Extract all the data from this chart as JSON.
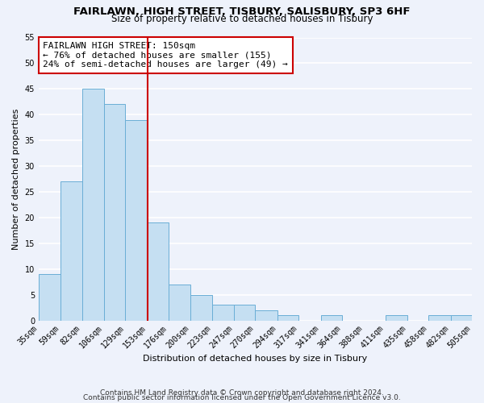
{
  "title": "FAIRLAWN, HIGH STREET, TISBURY, SALISBURY, SP3 6HF",
  "subtitle": "Size of property relative to detached houses in Tisbury",
  "xlabel": "Distribution of detached houses by size in Tisbury",
  "ylabel": "Number of detached properties",
  "bar_edges": [
    35,
    59,
    82,
    106,
    129,
    153,
    176,
    200,
    223,
    247,
    270,
    294,
    317,
    341,
    364,
    388,
    411,
    435,
    458,
    482,
    505
  ],
  "bar_heights": [
    9,
    27,
    45,
    42,
    39,
    19,
    7,
    5,
    3,
    3,
    2,
    1,
    0,
    1,
    0,
    0,
    1,
    0,
    1,
    1
  ],
  "bar_color": "#c5dff2",
  "bar_edge_color": "#6aaed6",
  "property_line_x": 153,
  "property_line_color": "#cc0000",
  "annotation_line1": "FAIRLAWN HIGH STREET: 150sqm",
  "annotation_line2": "← 76% of detached houses are smaller (155)",
  "annotation_line3": "24% of semi-detached houses are larger (49) →",
  "annotation_box_color": "white",
  "annotation_box_edge_color": "#cc0000",
  "ylim": [
    0,
    55
  ],
  "yticks": [
    0,
    5,
    10,
    15,
    20,
    25,
    30,
    35,
    40,
    45,
    50,
    55
  ],
  "tick_labels": [
    "35sqm",
    "59sqm",
    "82sqm",
    "106sqm",
    "129sqm",
    "153sqm",
    "176sqm",
    "200sqm",
    "223sqm",
    "247sqm",
    "270sqm",
    "294sqm",
    "317sqm",
    "341sqm",
    "364sqm",
    "388sqm",
    "411sqm",
    "435sqm",
    "458sqm",
    "482sqm",
    "505sqm"
  ],
  "footnote1": "Contains HM Land Registry data © Crown copyright and database right 2024.",
  "footnote2": "Contains public sector information licensed under the Open Government Licence v3.0.",
  "background_color": "#eef2fb",
  "grid_color": "white",
  "title_fontsize": 9.5,
  "subtitle_fontsize": 8.5,
  "axis_label_fontsize": 8,
  "tick_fontsize": 7,
  "annotation_fontsize": 8,
  "footnote_fontsize": 6.5
}
